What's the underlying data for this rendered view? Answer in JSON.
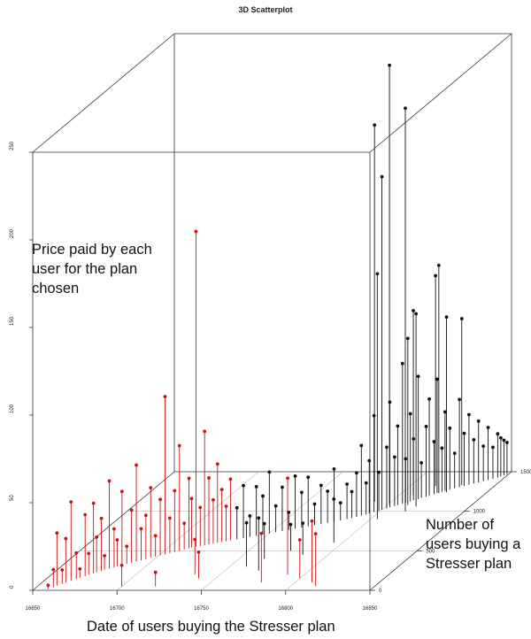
{
  "chart_data": {
    "type": "scatter",
    "title": "3D Scatterplot",
    "xlabel": "",
    "ylabel": "",
    "zlabel": "",
    "annotations": {
      "z_axis": "Price paid by each user for the plan chosen",
      "y_axis": "Number of users buying a Stresser plan",
      "x_axis": "Date of users buying the Stresser plan"
    },
    "xlim": [
      16650,
      16850
    ],
    "ylim": [
      0,
      1500
    ],
    "zlim": [
      0,
      250
    ],
    "x_ticks": [
      "16650",
      "16700",
      "16750",
      "16800",
      "16850"
    ],
    "y_ticks": [
      "0",
      "500",
      "1000",
      "1500"
    ],
    "z_ticks": [
      "0",
      "50",
      "100",
      "150",
      "200",
      "250"
    ],
    "projection": "perspective-box",
    "drop_lines": true,
    "colors": {
      "near": "#cc1111",
      "far": "#111111",
      "grid": "#bbbbbb",
      "box": "#333333"
    },
    "points": [
      {
        "x": 16658,
        "y": 20,
        "z": 2
      },
      {
        "x": 16660,
        "y": 40,
        "z": 10
      },
      {
        "x": 16661,
        "y": 60,
        "z": 30
      },
      {
        "x": 16663,
        "y": 80,
        "z": 8
      },
      {
        "x": 16664,
        "y": 100,
        "z": 25
      },
      {
        "x": 16666,
        "y": 120,
        "z": 45
      },
      {
        "x": 16668,
        "y": 140,
        "z": 15
      },
      {
        "x": 16669,
        "y": 160,
        "z": 5
      },
      {
        "x": 16671,
        "y": 180,
        "z": 35
      },
      {
        "x": 16672,
        "y": 200,
        "z": 12
      },
      {
        "x": 16674,
        "y": 215,
        "z": 40
      },
      {
        "x": 16675,
        "y": 230,
        "z": 20
      },
      {
        "x": 16677,
        "y": 245,
        "z": 30
      },
      {
        "x": 16678,
        "y": 260,
        "z": 8
      },
      {
        "x": 16680,
        "y": 275,
        "z": 50
      },
      {
        "x": 16682,
        "y": 290,
        "z": 22
      },
      {
        "x": 16683,
        "y": 305,
        "z": 15
      },
      {
        "x": 16685,
        "y": 320,
        "z": 42
      },
      {
        "x": 16687,
        "y": 335,
        "z": 10
      },
      {
        "x": 16689,
        "y": 350,
        "z": 30
      },
      {
        "x": 16691,
        "y": 365,
        "z": 55
      },
      {
        "x": 16693,
        "y": 380,
        "z": 18
      },
      {
        "x": 16695,
        "y": 395,
        "z": 25
      },
      {
        "x": 16697,
        "y": 410,
        "z": 40
      },
      {
        "x": 16699,
        "y": 425,
        "z": 12
      },
      {
        "x": 16701,
        "y": 440,
        "z": 32
      },
      {
        "x": 16703,
        "y": 455,
        "z": 90
      },
      {
        "x": 16705,
        "y": 470,
        "z": 20
      },
      {
        "x": 16707,
        "y": 485,
        "z": 35
      },
      {
        "x": 16709,
        "y": 500,
        "z": 60
      },
      {
        "x": 16711,
        "y": 515,
        "z": 15
      },
      {
        "x": 16713,
        "y": 530,
        "z": 40
      },
      {
        "x": 16714,
        "y": 540,
        "z": 28
      },
      {
        "x": 16716,
        "y": 550,
        "z": 180
      },
      {
        "x": 16718,
        "y": 560,
        "z": 22
      },
      {
        "x": 16720,
        "y": 570,
        "z": 65
      },
      {
        "x": 16722,
        "y": 580,
        "z": 38
      },
      {
        "x": 16724,
        "y": 590,
        "z": 25
      },
      {
        "x": 16726,
        "y": 600,
        "z": 45
      },
      {
        "x": 16728,
        "y": 610,
        "z": 30
      },
      {
        "x": 16730,
        "y": 620,
        "z": 20
      },
      {
        "x": 16732,
        "y": 630,
        "z": 35
      },
      {
        "x": 16735,
        "y": 645,
        "z": 18
      },
      {
        "x": 16738,
        "y": 660,
        "z": 30
      },
      {
        "x": 16741,
        "y": 675,
        "z": 12
      },
      {
        "x": 16744,
        "y": 690,
        "z": 28
      },
      {
        "x": 16747,
        "y": 705,
        "z": 22
      },
      {
        "x": 16750,
        "y": 720,
        "z": 35
      },
      {
        "x": 16753,
        "y": 735,
        "z": 15
      },
      {
        "x": 16756,
        "y": 750,
        "z": 25
      },
      {
        "x": 16759,
        "y": 765,
        "z": 10
      },
      {
        "x": 16762,
        "y": 780,
        "z": 30
      },
      {
        "x": 16765,
        "y": 795,
        "z": 20
      },
      {
        "x": 16768,
        "y": 810,
        "z": 28
      },
      {
        "x": 16771,
        "y": 825,
        "z": 12
      },
      {
        "x": 16774,
        "y": 840,
        "z": 22
      },
      {
        "x": 16777,
        "y": 855,
        "z": 18
      },
      {
        "x": 16780,
        "y": 870,
        "z": 30
      },
      {
        "x": 16783,
        "y": 885,
        "z": 10
      },
      {
        "x": 16786,
        "y": 900,
        "z": 20
      },
      {
        "x": 16788,
        "y": 915,
        "z": 15
      },
      {
        "x": 16790,
        "y": 930,
        "z": 25
      },
      {
        "x": 16792,
        "y": 945,
        "z": 40
      },
      {
        "x": 16794,
        "y": 960,
        "z": 18
      },
      {
        "x": 16795,
        "y": 975,
        "z": 30
      },
      {
        "x": 16797,
        "y": 990,
        "z": 55
      },
      {
        "x": 16799,
        "y": 1005,
        "z": 22
      },
      {
        "x": 16800,
        "y": 1020,
        "z": 190
      },
      {
        "x": 16802,
        "y": 1035,
        "z": 35
      },
      {
        "x": 16803,
        "y": 1050,
        "z": 60
      },
      {
        "x": 16805,
        "y": 1065,
        "z": 28
      },
      {
        "x": 16806,
        "y": 1080,
        "z": 45
      },
      {
        "x": 16808,
        "y": 1095,
        "z": 80
      },
      {
        "x": 16809,
        "y": 1110,
        "z": 25
      },
      {
        "x": 16811,
        "y": 1125,
        "z": 50
      },
      {
        "x": 16812,
        "y": 1140,
        "z": 35
      },
      {
        "x": 16814,
        "y": 1155,
        "z": 70
      },
      {
        "x": 16815,
        "y": 1170,
        "z": 20
      },
      {
        "x": 16817,
        "y": 1185,
        "z": 40
      },
      {
        "x": 16818,
        "y": 1200,
        "z": 55
      },
      {
        "x": 16820,
        "y": 1215,
        "z": 30
      },
      {
        "x": 16821,
        "y": 1230,
        "z": 65
      },
      {
        "x": 16823,
        "y": 1245,
        "z": 25
      },
      {
        "x": 16824,
        "y": 1260,
        "z": 45
      },
      {
        "x": 16826,
        "y": 1275,
        "z": 35
      },
      {
        "x": 16828,
        "y": 1290,
        "z": 20
      },
      {
        "x": 16830,
        "y": 1305,
        "z": 50
      },
      {
        "x": 16832,
        "y": 1320,
        "z": 30
      },
      {
        "x": 16834,
        "y": 1335,
        "z": 40
      },
      {
        "x": 16836,
        "y": 1350,
        "z": 25
      },
      {
        "x": 16838,
        "y": 1365,
        "z": 35
      },
      {
        "x": 16840,
        "y": 1380,
        "z": 20
      },
      {
        "x": 16842,
        "y": 1395,
        "z": 30
      },
      {
        "x": 16844,
        "y": 1410,
        "z": 18
      },
      {
        "x": 16846,
        "y": 1425,
        "z": 25
      },
      {
        "x": 16847,
        "y": 1440,
        "z": 22
      },
      {
        "x": 16848,
        "y": 1455,
        "z": 20
      },
      {
        "x": 16849,
        "y": 1470,
        "z": 18
      },
      {
        "x": 16790,
        "y": 1120,
        "z": 215
      },
      {
        "x": 16804,
        "y": 900,
        "z": 140
      },
      {
        "x": 16818,
        "y": 1060,
        "z": 110
      },
      {
        "x": 16822,
        "y": 1230,
        "z": 130
      },
      {
        "x": 16826,
        "y": 1240,
        "z": 100
      },
      {
        "x": 16815,
        "y": 1320,
        "z": 120
      },
      {
        "x": 16808,
        "y": 1210,
        "z": 105
      },
      {
        "x": 16830,
        "y": 1330,
        "z": 95
      },
      {
        "x": 16812,
        "y": 1080,
        "z": 95
      },
      {
        "x": 16815,
        "y": 1000,
        "z": 230
      },
      {
        "x": 16800,
        "y": 1100,
        "z": 250
      },
      {
        "x": 16735,
        "y": 200,
        "z": 20
      },
      {
        "x": 16740,
        "y": 150,
        "z": 15
      },
      {
        "x": 16760,
        "y": 300,
        "z": 25
      },
      {
        "x": 16770,
        "y": 250,
        "z": 30
      },
      {
        "x": 16780,
        "y": 100,
        "z": 28
      },
      {
        "x": 16790,
        "y": 200,
        "z": 55
      },
      {
        "x": 16800,
        "y": 150,
        "z": 22
      },
      {
        "x": 16810,
        "y": 100,
        "z": 35
      },
      {
        "x": 16815,
        "y": 50,
        "z": 30
      },
      {
        "x": 16720,
        "y": 50,
        "z": 8
      },
      {
        "x": 16700,
        "y": 50,
        "z": 12
      },
      {
        "x": 16765,
        "y": 400,
        "z": 20
      },
      {
        "x": 16775,
        "y": 500,
        "z": 15
      },
      {
        "x": 16785,
        "y": 450,
        "z": 18
      },
      {
        "x": 16795,
        "y": 600,
        "z": 25
      }
    ]
  }
}
